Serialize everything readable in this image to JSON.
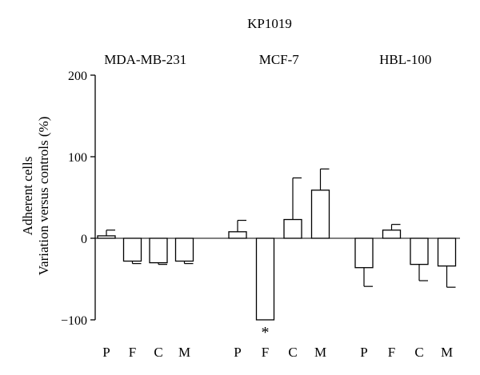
{
  "chart_data": {
    "type": "bar",
    "title": "KP1019",
    "ylabel_lines": [
      "Adherent cells",
      "Variation versus controls (%)"
    ],
    "ylim": [
      -100,
      200
    ],
    "yticks": [
      -100,
      0,
      100,
      200
    ],
    "ytick_labels": [
      "−100",
      "0",
      "100",
      "200"
    ],
    "groups": [
      {
        "name": "MDA-MB-231",
        "categories": [
          "P",
          "F",
          "C",
          "M"
        ],
        "values": [
          3,
          -28,
          -30,
          -28
        ],
        "errors": [
          7,
          3,
          2,
          3
        ],
        "annotations": [
          "",
          "",
          "",
          ""
        ]
      },
      {
        "name": "MCF-7",
        "categories": [
          "P",
          "F",
          "C",
          "M"
        ],
        "values": [
          8,
          -100,
          23,
          59
        ],
        "errors": [
          14,
          0,
          51,
          26
        ],
        "annotations": [
          "",
          "*",
          "",
          ""
        ]
      },
      {
        "name": "HBL-100",
        "categories": [
          "P",
          "F",
          "C",
          "M"
        ],
        "values": [
          -36,
          10,
          -32,
          -34
        ],
        "errors": [
          23,
          7,
          20,
          26
        ],
        "annotations": [
          "",
          "",
          "",
          ""
        ]
      }
    ]
  }
}
